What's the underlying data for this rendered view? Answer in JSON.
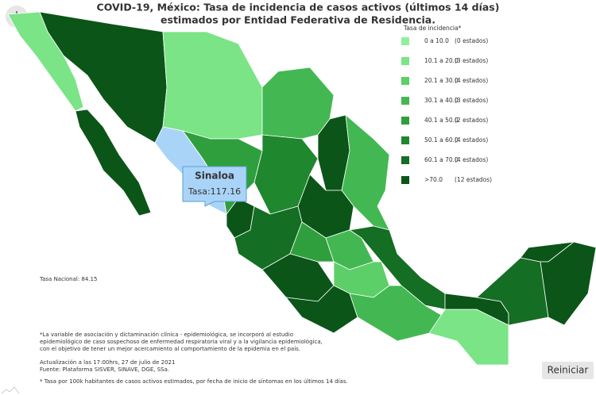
{
  "title": [
    "COVID-19, México: Tasa de incidencia de casos activos (últimos 14 días)",
    "estimados por Entidad Federativa de Residencia."
  ],
  "legend": {
    "title": "Tasa de incidencia*",
    "items": [
      {
        "range": "0 a 10.0",
        "count": "(0 estados)",
        "color": "#8ff09c"
      },
      {
        "range": "10.1 a 20.0",
        "count": "(3 estados)",
        "color": "#7be486"
      },
      {
        "range": "20.1 a 30.0",
        "count": "(4 estados)",
        "color": "#5ccf69"
      },
      {
        "range": "30.1 a 40.0",
        "count": "(3 estados)",
        "color": "#43b852"
      },
      {
        "range": "40.1 a 50.0",
        "count": "(2 estados)",
        "color": "#2f9f3d"
      },
      {
        "range": "50.1 a 60.0",
        "count": "(4 estados)",
        "color": "#1f872e"
      },
      {
        "range": "60.1 a 70.0",
        "count": "(4 estados)",
        "color": "#146e23"
      },
      {
        "range": ">70.0",
        "count": "(12 estados)",
        "color": "#0b5519"
      }
    ]
  },
  "tooltip": {
    "name": "Sinaloa",
    "text": "Tasa:117.16",
    "color": "#a9d4f8"
  },
  "national": "Tasa Nacional: 84.15",
  "notes": [
    "*La variable de asociación y dictaminación clínica - epidemiológica, se incorporó al estudio",
    "epidemiológico de caso sospechoso de enfermedad respiratoria viral y a la vigilancia epidemiológica,",
    "con el objetivo de tener un mejor acercamiento al comportamiento de la epidemia en el país."
  ],
  "update": [
    "Actualización a las 17:00hrs, 27 de julio de 2021",
    "Fuente: Plataforma SISVER, SINAVE, DGE, SSa."
  ],
  "footnote": "* Tasa por 100k habitantes de casos activos estimados, por fecha de inicio de síntomas en los últimos 14 días.",
  "button": "Reiniciar"
}
